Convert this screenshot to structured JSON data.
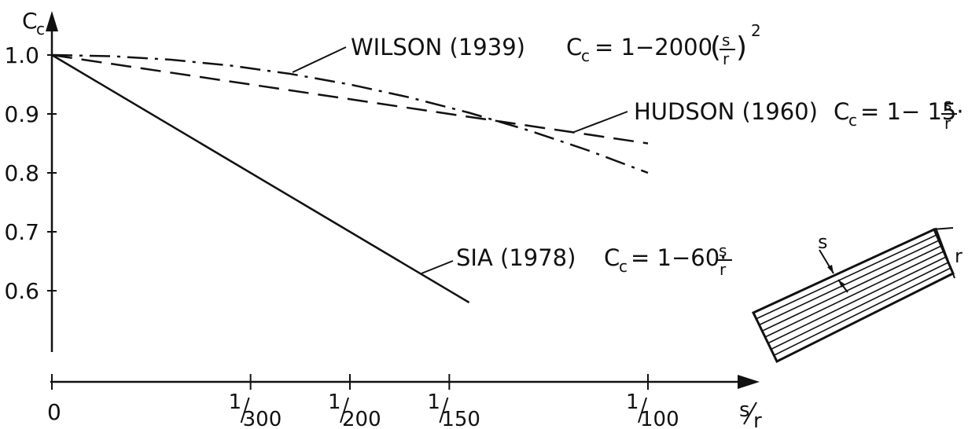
{
  "chart_data": {
    "type": "line",
    "ylabel": "C",
    "ylabel_sub": "c",
    "xlabel_num": "s",
    "xlabel_den": "r",
    "xlim": [
      0,
      0.01
    ],
    "ylim": [
      0.5,
      1.0
    ],
    "y_ticks": [
      {
        "value": 1.0,
        "label": "1.0"
      },
      {
        "value": 0.9,
        "label": "0.9"
      },
      {
        "value": 0.8,
        "label": "0.8"
      },
      {
        "value": 0.7,
        "label": "0.7"
      },
      {
        "value": 0.6,
        "label": "0.6"
      }
    ],
    "x_ticks": [
      {
        "value": 0,
        "label": "0"
      },
      {
        "value": 0.003333,
        "num": "1",
        "den": "300"
      },
      {
        "value": 0.005,
        "num": "1",
        "den": "200"
      },
      {
        "value": 0.006667,
        "num": "1",
        "den": "150"
      },
      {
        "value": 0.01,
        "num": "1",
        "den": "100"
      }
    ],
    "series": [
      {
        "name": "WILSON (1939)",
        "style": "dashdot",
        "formula": {
          "lhs": "C",
          "sub": "c",
          "rhs": "= 1−2000",
          "frac_num": "s",
          "frac_den": "r",
          "power": "2"
        },
        "x": [
          0,
          0.001,
          0.002,
          0.003,
          0.004,
          0.005,
          0.006,
          0.007,
          0.008,
          0.009,
          0.01
        ],
        "y": [
          1.0,
          0.998,
          0.992,
          0.982,
          0.968,
          0.95,
          0.928,
          0.902,
          0.872,
          0.838,
          0.8
        ]
      },
      {
        "name": "HUDSON (1960)",
        "style": "dashed",
        "formula": {
          "lhs": "C",
          "sub": "c",
          "rhs": "= 1− 15·",
          "frac_num": "s",
          "frac_den": "r"
        },
        "x": [
          0,
          0.01
        ],
        "y": [
          1.0,
          0.85
        ]
      },
      {
        "name": "SIA (1978)",
        "style": "solid",
        "formula": {
          "lhs": "C",
          "sub": "c",
          "rhs": "= 1−60·",
          "frac_num": "s",
          "frac_den": "r"
        },
        "x": [
          0,
          0.007
        ],
        "y": [
          1.0,
          0.58
        ]
      }
    ],
    "inset_labels": {
      "s": "s",
      "r": "r"
    }
  }
}
